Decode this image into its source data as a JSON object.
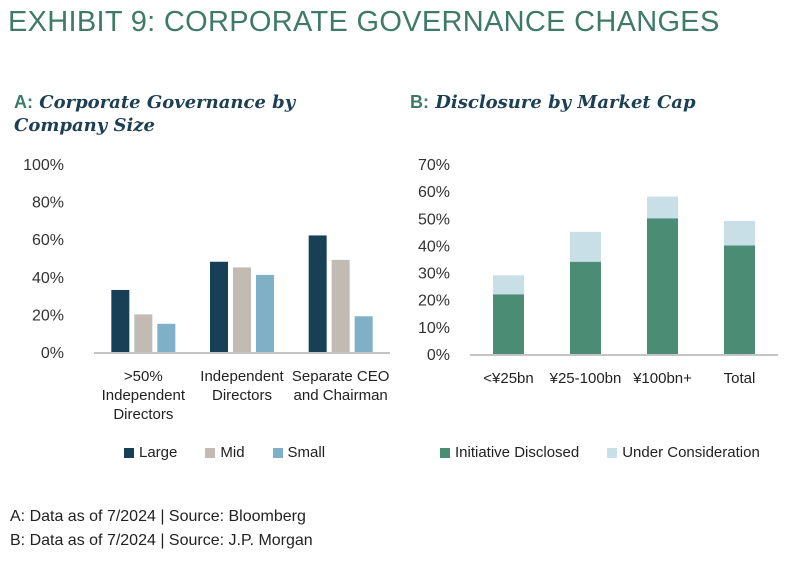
{
  "title": "EXHIBIT 9: CORPORATE GOVERNANCE CHANGES",
  "footnotes": [
    "A: Data as of 7/2024 | Source: Bloomberg",
    "B: Data as of 7/2024 | Source: J.P. Morgan"
  ],
  "chart_data": [
    {
      "type": "bar",
      "panel_letter": "A:",
      "title": "Corporate Governance by Company Size",
      "categories": [
        ">50% Independent Directors",
        "Independent Directors",
        "Separate CEO and Chairman"
      ],
      "category_lines": [
        [
          ">50%",
          "Independent",
          "Directors"
        ],
        [
          "Independent",
          "Directors"
        ],
        [
          "Separate CEO",
          "and Chairman"
        ]
      ],
      "series": [
        {
          "name": "Large",
          "color": "#173f56",
          "values": [
            33,
            48,
            62
          ]
        },
        {
          "name": "Mid",
          "color": "#c2bbb3",
          "values": [
            20,
            45,
            49
          ]
        },
        {
          "name": "Small",
          "color": "#7fb0c8",
          "values": [
            15,
            41,
            19
          ]
        }
      ],
      "ylim": [
        0,
        100
      ],
      "yticks": [
        "0%",
        "20%",
        "40%",
        "60%",
        "80%",
        "100%"
      ],
      "ytick_values": [
        0,
        20,
        40,
        60,
        80,
        100
      ],
      "grid": false,
      "legend_position": "bottom"
    },
    {
      "type": "bar",
      "stacked": true,
      "panel_letter": "B:",
      "title": "Disclosure by Market Cap",
      "categories": [
        "<¥25bn",
        "¥25-100bn",
        "¥100bn+",
        "Total"
      ],
      "series": [
        {
          "name": "Initiative Disclosed",
          "color": "#4a8c74",
          "values": [
            22,
            34,
            50,
            40
          ]
        },
        {
          "name": "Under Consideration",
          "color": "#c9dfe7",
          "values": [
            7,
            11,
            8,
            9
          ]
        }
      ],
      "ylim": [
        0,
        70
      ],
      "yticks": [
        "0%",
        "10%",
        "20%",
        "30%",
        "40%",
        "50%",
        "60%",
        "70%"
      ],
      "ytick_values": [
        0,
        10,
        20,
        30,
        40,
        50,
        60,
        70
      ],
      "grid": false,
      "legend_position": "bottom"
    }
  ]
}
